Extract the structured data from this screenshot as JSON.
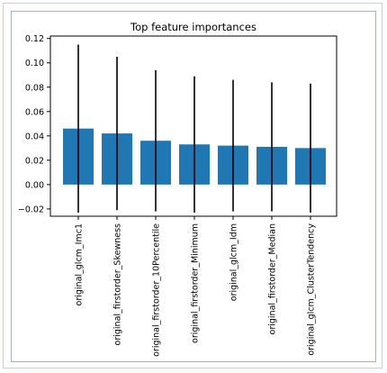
{
  "chart_data": {
    "type": "bar",
    "title": "Top feature importances",
    "xlabel": "",
    "ylabel": "",
    "categories": [
      "original_glcm_Imc1",
      "original_firstorder_Skewness",
      "original_firstorder_10Percentile",
      "original_firstorder_Minimum",
      "original_glcm_Idm",
      "original_firstorder_Median",
      "original_glcm_ClusterTendency"
    ],
    "values": [
      0.046,
      0.042,
      0.036,
      0.033,
      0.032,
      0.031,
      0.03
    ],
    "error": [
      0.069,
      0.063,
      0.058,
      0.056,
      0.054,
      0.053,
      0.053
    ],
    "ylim": [
      -0.026,
      0.122
    ],
    "yticks": [
      -0.02,
      0.0,
      0.02,
      0.04,
      0.06,
      0.08,
      0.1,
      0.12
    ],
    "ytick_labels": [
      "−0.02",
      "0.00",
      "0.02",
      "0.04",
      "0.06",
      "0.08",
      "0.10",
      "0.12"
    ],
    "grid": false,
    "bar_color": "#1f77b4",
    "error_color": "#000000"
  }
}
